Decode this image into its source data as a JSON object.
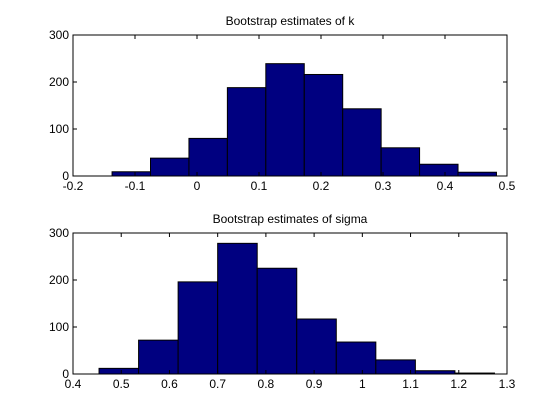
{
  "figure": {
    "background": "#ffffff",
    "bar_color": "#000080",
    "edge_color": "#000000"
  },
  "chart_data": [
    {
      "type": "bar",
      "title": "Bootstrap estimates of k",
      "xlabel": "",
      "ylabel": "",
      "xlim": [
        -0.2,
        0.5
      ],
      "ylim": [
        0,
        300
      ],
      "xticks": [
        "-0.2",
        "-0.1",
        "0",
        "0.1",
        "0.2",
        "0.3",
        "0.4",
        "0.5"
      ],
      "yticks": [
        "0",
        "100",
        "200",
        "300"
      ],
      "bins": [
        {
          "x0": -0.137,
          "x1": -0.075,
          "count": 9
        },
        {
          "x0": -0.075,
          "x1": -0.013,
          "count": 38
        },
        {
          "x0": -0.013,
          "x1": 0.049,
          "count": 80
        },
        {
          "x0": 0.049,
          "x1": 0.111,
          "count": 188
        },
        {
          "x0": 0.111,
          "x1": 0.173,
          "count": 239
        },
        {
          "x0": 0.173,
          "x1": 0.235,
          "count": 216
        },
        {
          "x0": 0.235,
          "x1": 0.297,
          "count": 143
        },
        {
          "x0": 0.297,
          "x1": 0.359,
          "count": 60
        },
        {
          "x0": 0.359,
          "x1": 0.421,
          "count": 25
        },
        {
          "x0": 0.421,
          "x1": 0.483,
          "count": 8
        }
      ]
    },
    {
      "type": "bar",
      "title": "Bootstrap estimates of sigma",
      "xlabel": "",
      "ylabel": "",
      "xlim": [
        0.4,
        1.3
      ],
      "ylim": [
        0,
        300
      ],
      "xticks": [
        "0.4",
        "0.5",
        "0.6",
        "0.7",
        "0.8",
        "0.9",
        "1",
        "1.1",
        "1.2",
        "1.3"
      ],
      "yticks": [
        "0",
        "100",
        "200",
        "300"
      ],
      "bins": [
        {
          "x0": 0.454,
          "x1": 0.536,
          "count": 12
        },
        {
          "x0": 0.536,
          "x1": 0.618,
          "count": 72
        },
        {
          "x0": 0.618,
          "x1": 0.7,
          "count": 196
        },
        {
          "x0": 0.7,
          "x1": 0.782,
          "count": 278
        },
        {
          "x0": 0.782,
          "x1": 0.864,
          "count": 225
        },
        {
          "x0": 0.864,
          "x1": 0.946,
          "count": 117
        },
        {
          "x0": 0.946,
          "x1": 1.028,
          "count": 68
        },
        {
          "x0": 1.028,
          "x1": 1.11,
          "count": 30
        },
        {
          "x0": 1.11,
          "x1": 1.192,
          "count": 7
        },
        {
          "x0": 1.192,
          "x1": 1.274,
          "count": 2
        }
      ]
    }
  ]
}
